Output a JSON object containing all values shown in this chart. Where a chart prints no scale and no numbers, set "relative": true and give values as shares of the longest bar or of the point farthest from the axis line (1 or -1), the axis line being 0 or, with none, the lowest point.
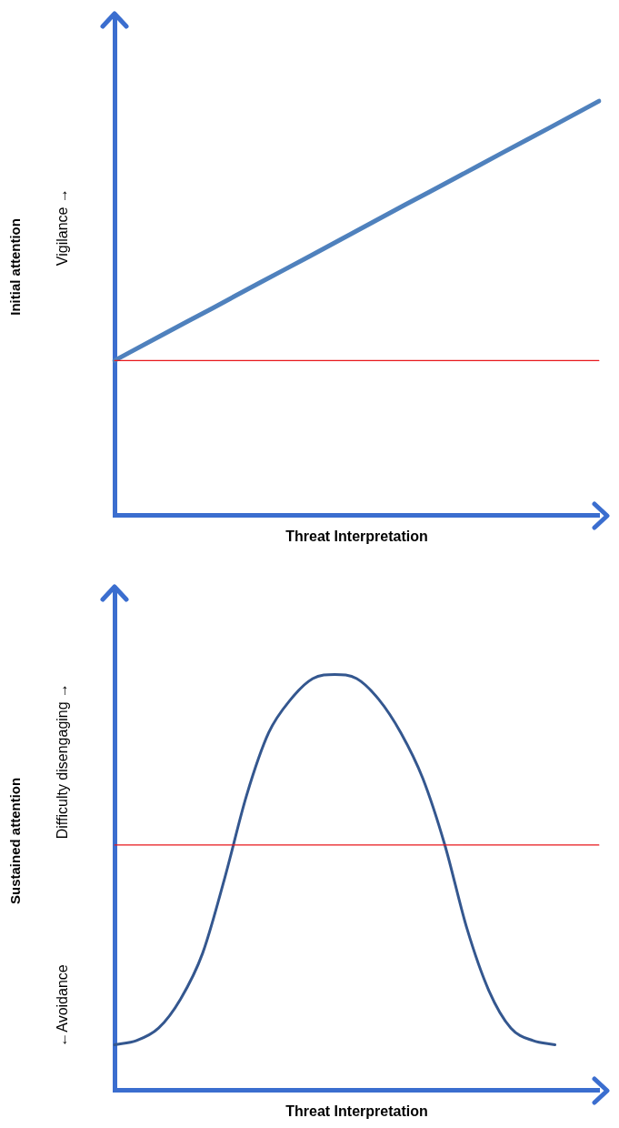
{
  "chart_data": [
    {
      "type": "line",
      "ylabel": "Initial attention",
      "xlabel": "Threat Interpretation",
      "annotations": [
        "Vigilance →"
      ],
      "relative": true,
      "tick_labels": false,
      "marker": "none",
      "categories": [
        null,
        null,
        null,
        null,
        null,
        null,
        null,
        null,
        null,
        null,
        null
      ],
      "series": [
        {
          "color": "#4f81bd",
          "values": [
            0.374,
            0.437,
            0.499,
            0.562,
            0.624,
            0.687,
            0.75,
            0.812,
            0.875,
            0.937,
            1
          ]
        },
        {
          "color": "#e8161b",
          "values": [
            0.374,
            0.374,
            0.374,
            0.374,
            0.374,
            0.374,
            0.374,
            0.374,
            0.374,
            0.374,
            0.374
          ]
        }
      ]
    },
    {
      "type": "line",
      "ylabel": "Sustained attention",
      "xlabel": "Threat Interpretation",
      "annotations": [
        "Difficulty disengaging →",
        "←Avoidance"
      ],
      "relative": true,
      "tick_labels": false,
      "marker": "none",
      "categories": [
        null,
        null,
        null,
        null,
        null,
        null,
        null,
        null,
        null,
        null,
        null,
        null,
        null,
        null,
        null,
        null,
        null,
        null,
        null,
        null,
        null,
        null,
        null
      ],
      "series": [
        {
          "color": "#34578f",
          "values": [
            0.11,
            0.12,
            0.15,
            0.22,
            0.33,
            0.51,
            0.71,
            0.86,
            0.94,
            0.99,
            1,
            0.99,
            0.94,
            0.86,
            0.75,
            0.59,
            0.39,
            0.24,
            0.15,
            0.12,
            0.11,
            null,
            null
          ]
        },
        {
          "color": "#e8161b",
          "values": [
            0.59,
            0.59,
            0.59,
            0.59,
            0.59,
            0.59,
            0.59,
            0.59,
            0.59,
            0.59,
            0.59,
            0.59,
            0.59,
            0.59,
            0.59,
            0.59,
            0.59,
            0.59,
            0.59,
            0.59,
            0.59,
            0.59,
            0.59
          ]
        }
      ]
    }
  ]
}
